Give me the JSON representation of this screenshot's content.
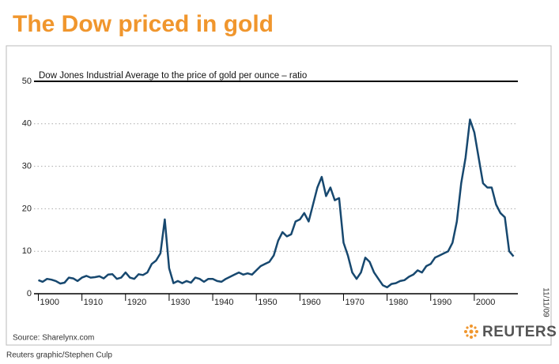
{
  "chart_data": {
    "type": "line",
    "title": "The Dow priced in gold",
    "subtitle": "Dow Jones Industrial Average to the price of gold per ounce – ratio",
    "source": "Source: Sharelynx.com",
    "credit": "Reuters graphic/Stephen Culp",
    "date": "11/11/09",
    "logo": "REUTERS",
    "x": [
      1900,
      1901,
      1902,
      1903,
      1904,
      1905,
      1906,
      1907,
      1908,
      1909,
      1910,
      1911,
      1912,
      1913,
      1914,
      1915,
      1916,
      1917,
      1918,
      1919,
      1920,
      1921,
      1922,
      1923,
      1924,
      1925,
      1926,
      1927,
      1928,
      1929,
      1930,
      1931,
      1932,
      1933,
      1934,
      1935,
      1936,
      1937,
      1938,
      1939,
      1940,
      1941,
      1942,
      1943,
      1944,
      1945,
      1946,
      1947,
      1948,
      1949,
      1950,
      1951,
      1952,
      1953,
      1954,
      1955,
      1956,
      1957,
      1958,
      1959,
      1960,
      1961,
      1962,
      1963,
      1964,
      1965,
      1966,
      1967,
      1968,
      1969,
      1970,
      1971,
      1972,
      1973,
      1974,
      1975,
      1976,
      1977,
      1978,
      1979,
      1980,
      1981,
      1982,
      1983,
      1984,
      1985,
      1986,
      1987,
      1988,
      1989,
      1990,
      1991,
      1992,
      1993,
      1994,
      1995,
      1996,
      1997,
      1998,
      1999,
      2000,
      2001,
      2002,
      2003,
      2004,
      2005,
      2006,
      2007,
      2008,
      2009
    ],
    "series": [
      {
        "name": "Dow/gold ratio",
        "color": "#17486f",
        "values": [
          3.2,
          2.8,
          3.5,
          3.3,
          3.0,
          2.4,
          2.6,
          3.8,
          3.6,
          3.0,
          3.8,
          4.2,
          3.8,
          3.9,
          4.1,
          3.6,
          4.5,
          4.6,
          3.5,
          3.8,
          5.0,
          3.8,
          3.5,
          4.6,
          4.4,
          5.0,
          7.0,
          7.8,
          9.5,
          17.5,
          6.0,
          2.5,
          3.0,
          2.5,
          3.0,
          2.6,
          3.8,
          3.5,
          2.8,
          3.5,
          3.5,
          3.0,
          2.8,
          3.5,
          4.0,
          4.5,
          5.0,
          4.5,
          4.8,
          4.5,
          5.5,
          6.5,
          7.0,
          7.5,
          9.0,
          12.5,
          14.5,
          13.5,
          14.0,
          17.0,
          17.5,
          19.0,
          17.0,
          21.0,
          25.0,
          27.5,
          23.0,
          25.0,
          22.0,
          22.5,
          12.0,
          9.0,
          5.0,
          3.5,
          5.0,
          8.5,
          7.5,
          5.0,
          3.5,
          2.0,
          1.5,
          2.3,
          2.5,
          3.0,
          3.2,
          4.0,
          4.5,
          5.5,
          5.0,
          6.5,
          7.0,
          8.5,
          9.0,
          9.5,
          10.0,
          12.0,
          17.0,
          26.0,
          32.0,
          41.0,
          38.0,
          32.0,
          26.0,
          25.0,
          25.0,
          21.0,
          19.0,
          18.0,
          10.0,
          8.8
        ]
      }
    ],
    "xlim": [
      1899,
      2010
    ],
    "xticks": [
      1900,
      1910,
      1920,
      1930,
      1940,
      1950,
      1960,
      1970,
      1980,
      1990,
      2000
    ],
    "ylim": [
      0,
      50
    ],
    "yticks": [
      0,
      10,
      20,
      30,
      40,
      50
    ],
    "grid": true
  }
}
